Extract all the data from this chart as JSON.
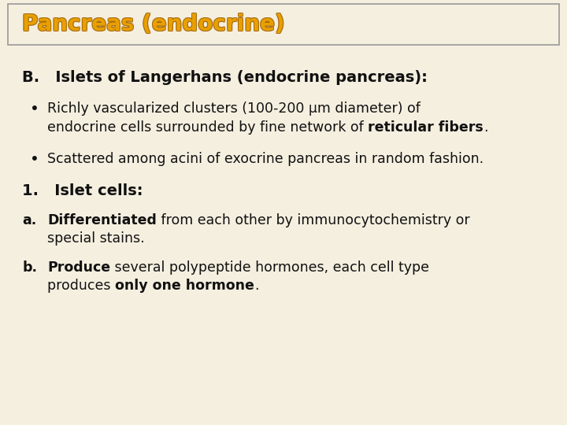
{
  "background_color": "#f5efe0",
  "title_box_bg": "#f5efe0",
  "title_box_edge": "#999999",
  "title_text": "Pancreas (endocrine)",
  "title_color": "#e8a000",
  "title_stroke_color": "#a06000",
  "title_fontsize": 20,
  "body_color": "#111111",
  "body_fontsize": 12.5,
  "heading_B_text": "B.   Islets of Langerhans (endocrine pancreas):",
  "heading_B_fontsize": 14,
  "bullet1_line1": "Richly vascularized clusters (100-200 μm diameter) of",
  "bullet1_line2_normal": "endocrine cells surrounded by fine network of ",
  "bullet1_line2_bold": "reticular fibers",
  "bullet1_line2_end": ".",
  "bullet2_text": "Scattered among acini of exocrine pancreas in random fashion.",
  "heading_1_text": "1.   Islet cells:",
  "heading_1_fontsize": 14,
  "heading_a_label": "a.",
  "heading_a_bold": "Differentiated",
  "heading_a_normal": " from each other by immunocytochemistry or",
  "heading_a_line2": "special stains.",
  "heading_b_label": "b.",
  "heading_b_bold": "Produce",
  "heading_b_normal": " several polypeptide hormones, each cell type",
  "heading_b_line2_normal": "produces ",
  "heading_b_line2_bold": "only one hormone",
  "heading_b_line2_end": "."
}
